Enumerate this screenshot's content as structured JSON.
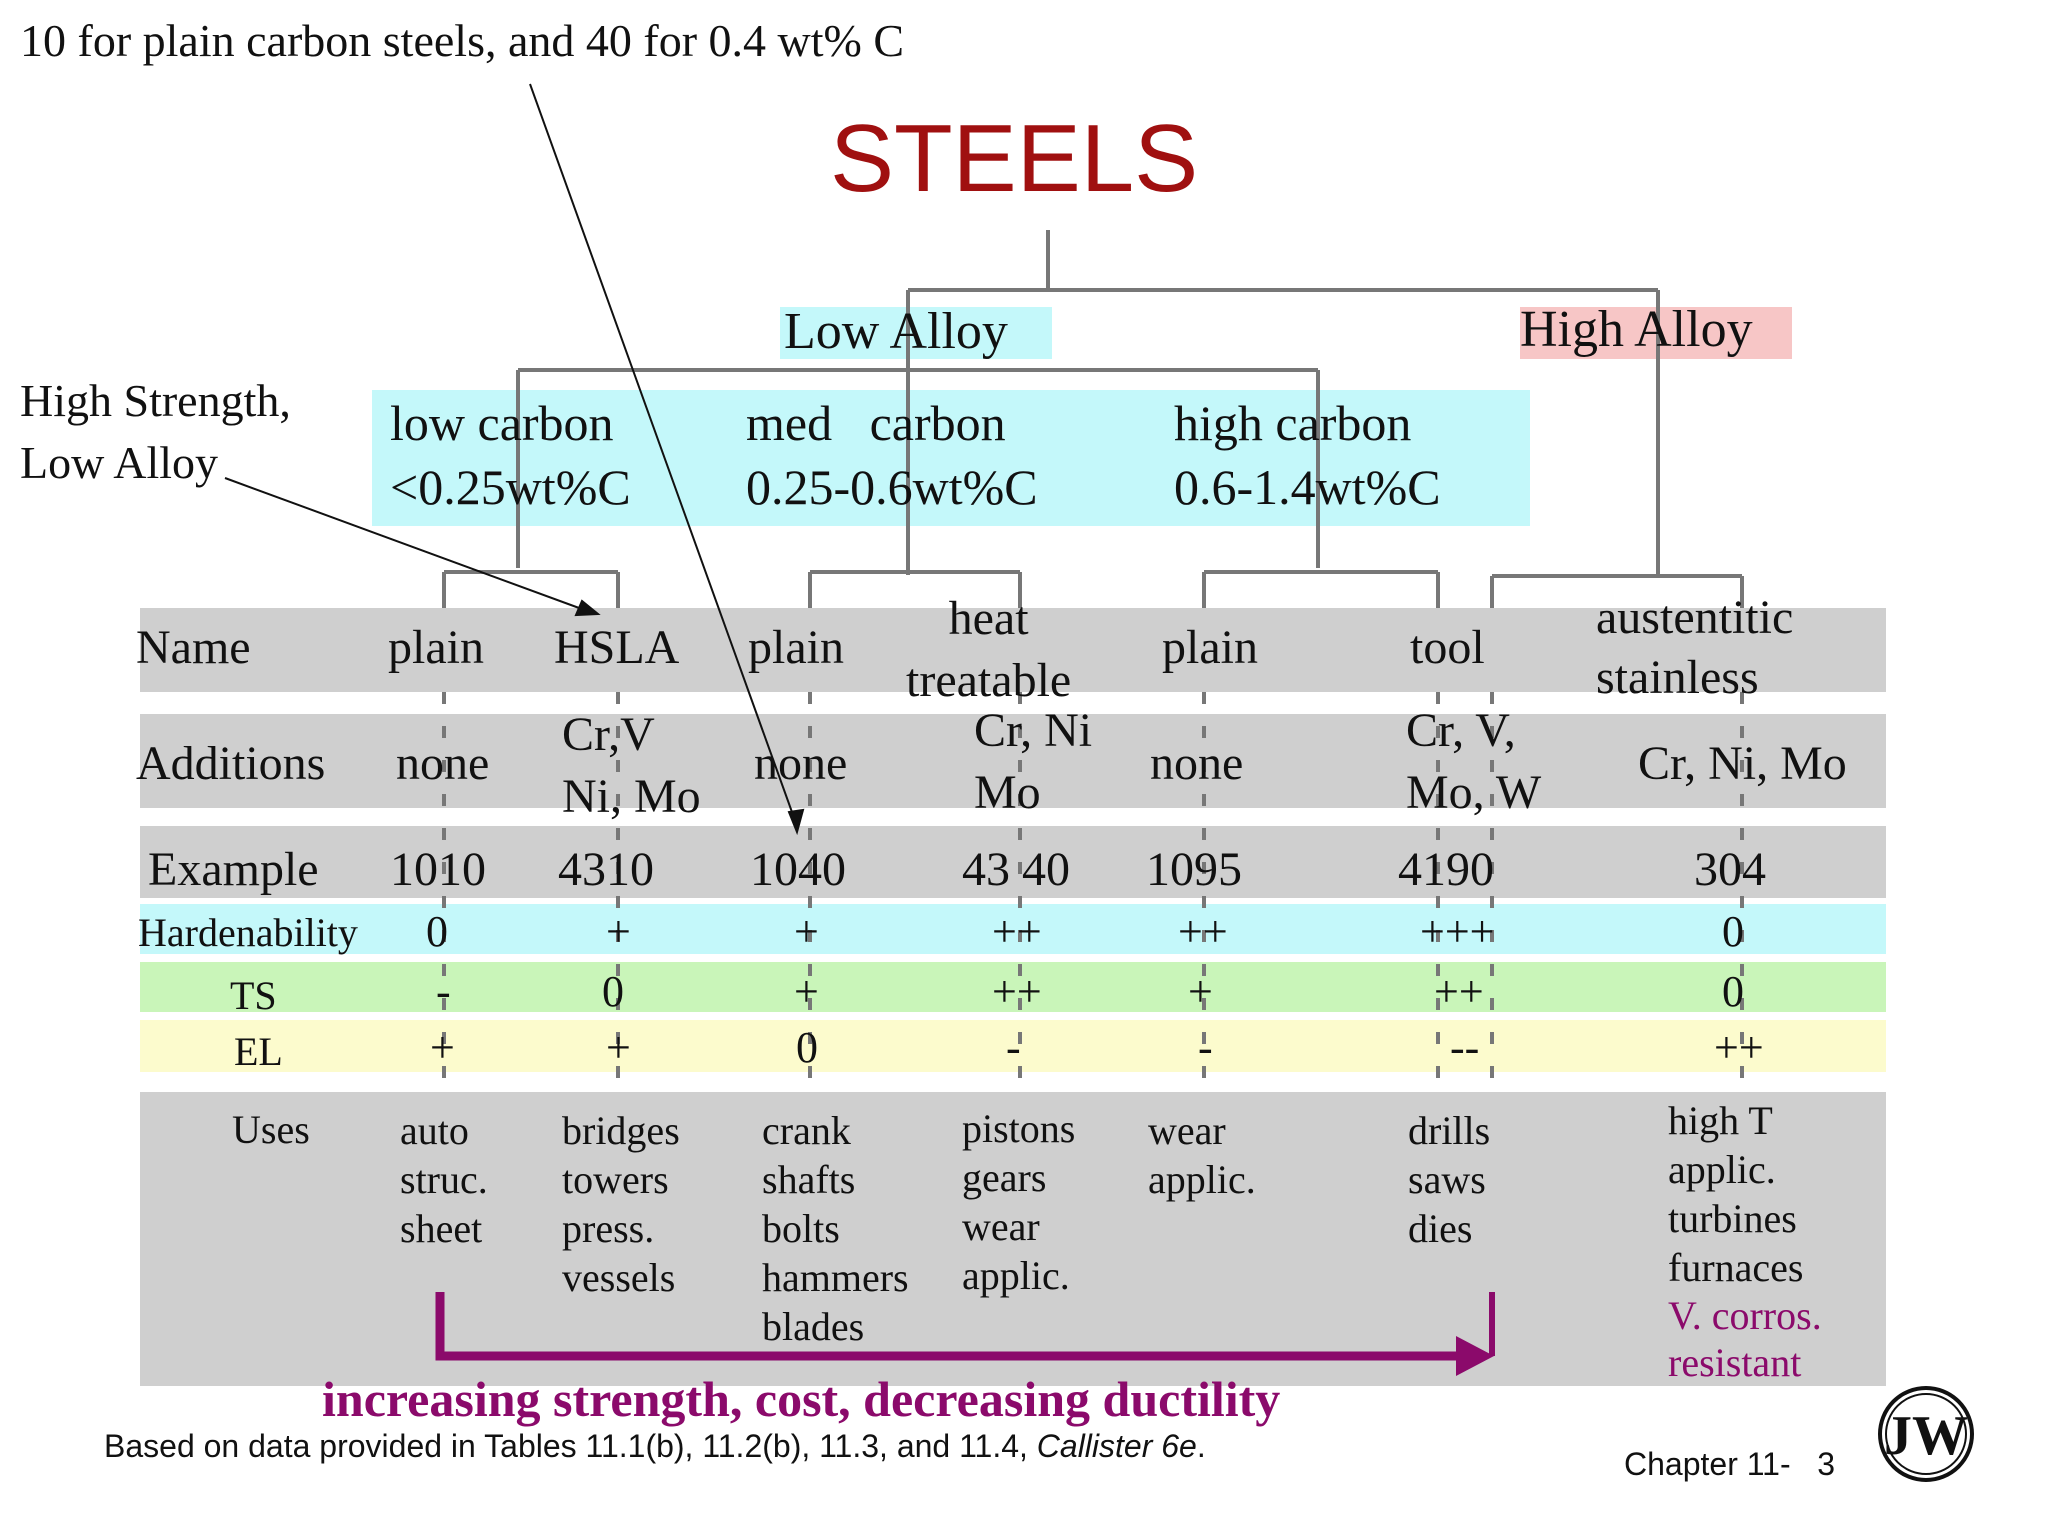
{
  "annotation_top": "10 for plain carbon steels, and 40 for 0.4 wt% C",
  "annotation_left": "High Strength,\nLow Alloy",
  "title": "STEELS",
  "categories": {
    "low_alloy": "Low Alloy",
    "high_alloy": "High Alloy"
  },
  "carbon_groups": {
    "low": {
      "name": "low carbon",
      "range": "<0.25wt%C"
    },
    "med": {
      "name": "med   carbon",
      "range": "0.25-0.6wt%C"
    },
    "high": {
      "name": "high carbon",
      "range": "0.6-1.4wt%C"
    }
  },
  "row_labels": {
    "name": "Name",
    "additions": "Additions",
    "example": "Example",
    "hardenability": "Hardenability",
    "ts": "TS",
    "el": "EL",
    "uses": "Uses"
  },
  "columns": [
    {
      "name": "plain",
      "additions": "none",
      "example": "1010",
      "hardenability": "0",
      "ts": "-",
      "el": "+",
      "uses": "auto\nstruc.\nsheet"
    },
    {
      "name": "HSLA",
      "additions": "Cr,V\nNi, Mo",
      "example": "4310",
      "hardenability": "+",
      "ts": "0",
      "el": "+",
      "uses": "bridges\ntowers\npress.\nvessels"
    },
    {
      "name": "plain",
      "additions": "none",
      "example": "1040",
      "hardenability": "+",
      "ts": "+",
      "el": "0",
      "uses": "crank\nshafts\nbolts\nhammers\nblades"
    },
    {
      "name": "heat\ntreatable",
      "additions": "Cr, Ni\nMo",
      "example": "43 40",
      "hardenability": "++",
      "ts": "++",
      "el": "-",
      "uses": "pistons\ngears\nwear\napplic."
    },
    {
      "name": "plain",
      "additions": "none",
      "example": "1095",
      "hardenability": "++",
      "ts": "+",
      "el": "-",
      "uses": "wear\napplic."
    },
    {
      "name": "tool",
      "additions": "Cr, V,\nMo, W",
      "example": "4190",
      "hardenability": "+++",
      "ts": "++",
      "el": "--",
      "uses": "drills\nsaws\ndies"
    },
    {
      "name": "austentitic\nstainless",
      "additions": "Cr, Ni, Mo",
      "example": "304",
      "hardenability": "0",
      "ts": "0",
      "el": "++",
      "uses": "high T\napplic.\nturbines\nfurnaces",
      "uses_extra": "V. corros.\nresistant"
    }
  ],
  "arrow_label": "increasing strength, cost, decreasing ductility",
  "footnote": {
    "text": "Based on data provided in Tables 11.1(b), 11.2(b), 11.3, and 11.4, ",
    "italic": "Callister 6e",
    "end": "."
  },
  "chapter": "Chapter 11-   3",
  "colors": {
    "title": "#a01010",
    "gray_band": "#cfcfcf",
    "cyan": "#c4f8fa",
    "green": "#c9f5b9",
    "yellow": "#fcfbcd",
    "pink": "#f7c6c6",
    "arrow": "#8b0a6b",
    "magenta_text": "#8b0a6b",
    "line": "#777777"
  },
  "logo": "JW"
}
